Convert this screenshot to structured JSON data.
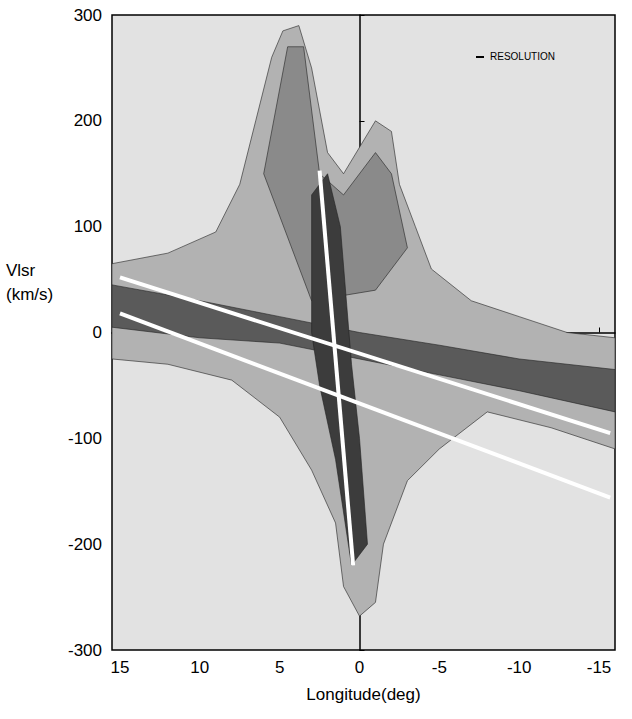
{
  "chart_data": {
    "type": "line",
    "xlabel": "Longitude(deg)",
    "ylabel": "Vlsr\n(km/s)",
    "annotations": [
      "RESOLUTION"
    ],
    "xlim": [
      15.5,
      -16
    ],
    "ylim": [
      -300,
      300
    ],
    "xticks": [
      15,
      10,
      5,
      0,
      -5,
      -10,
      -15
    ],
    "yticks": [
      -300,
      -200,
      -100,
      0,
      100,
      200,
      300
    ],
    "grid": false,
    "series": [
      {
        "type": "area",
        "color": "#b2b2b2",
        "x": [
          15.5,
          12,
          9,
          7.5,
          6.5,
          5.5,
          4.8,
          3.8,
          3,
          2,
          1,
          0,
          -1,
          -2,
          -2.5,
          -3.5,
          -4.5,
          -7,
          -10,
          -13,
          -16,
          -16,
          -12,
          -8,
          -5,
          -3,
          -1.5,
          -1,
          0,
          1,
          1.5,
          3,
          5,
          8,
          12,
          15.5
        ],
        "values": [
          65,
          75,
          95,
          140,
          200,
          260,
          285,
          290,
          250,
          170,
          150,
          175,
          200,
          190,
          140,
          100,
          60,
          30,
          15,
          0,
          -5,
          -110,
          -90,
          -75,
          -110,
          -140,
          -200,
          -255,
          -268,
          -240,
          -180,
          -130,
          -80,
          -45,
          -30,
          -25
        ]
      },
      {
        "type": "area",
        "color": "#8a8a8a",
        "x": [
          6,
          4.5,
          3.5,
          2.5,
          1,
          -1,
          -2,
          -3,
          -1,
          3
        ],
        "values": [
          150,
          270,
          270,
          150,
          130,
          170,
          150,
          80,
          40,
          30
        ]
      },
      {
        "type": "area",
        "color": "#5a5a5a",
        "x": [
          15.5,
          10,
          5,
          0,
          -5,
          -10,
          -16,
          -16,
          -10,
          -5,
          0,
          5,
          10,
          15.5
        ],
        "values": [
          45,
          30,
          15,
          0,
          -12,
          -25,
          -35,
          -75,
          -55,
          -40,
          -25,
          -10,
          -5,
          5
        ]
      },
      {
        "type": "area",
        "color": "#3c3c3c",
        "x": [
          3,
          3,
          2,
          1.2,
          0.5,
          0,
          -0.5,
          0.5,
          1.5,
          2.5
        ],
        "values": [
          0,
          130,
          150,
          100,
          -30,
          -100,
          -200,
          -220,
          -120,
          -50
        ]
      },
      {
        "type": "line",
        "color": "#ffffff",
        "line_style": "solid",
        "x": [
          15,
          -15.7
        ],
        "values": [
          52,
          -95
        ]
      },
      {
        "type": "line",
        "color": "#ffffff",
        "line_style": "solid",
        "x": [
          15,
          -15.7
        ],
        "values": [
          18,
          -156
        ]
      },
      {
        "type": "line",
        "color": "#ffffff",
        "line_style": "solid",
        "x": [
          2.5,
          0.4
        ],
        "values": [
          153,
          -220
        ]
      }
    ]
  }
}
